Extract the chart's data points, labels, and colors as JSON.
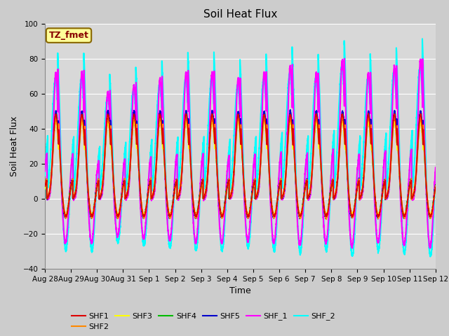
{
  "title": "Soil Heat Flux",
  "xlabel": "Time",
  "ylabel": "Soil Heat Flux",
  "ylim": [
    -40,
    100
  ],
  "n_days": 15,
  "tick_labels": [
    "Aug 28",
    "Aug 29",
    "Aug 30",
    "Aug 31",
    "Sep 1",
    "Sep 2",
    "Sep 3",
    "Sep 4",
    "Sep 5",
    "Sep 6",
    "Sep 7",
    "Sep 8",
    "Sep 9",
    "Sep 10",
    "Sep 11",
    "Sep 12"
  ],
  "series_order": [
    "SHF_2",
    "SHF_1",
    "SHF5",
    "SHF4",
    "SHF3",
    "SHF2",
    "SHF1"
  ],
  "colors": {
    "SHF1": "#dd0000",
    "SHF2": "#ff8800",
    "SHF3": "#ffff00",
    "SHF4": "#00bb00",
    "SHF5": "#0000cc",
    "SHF_1": "#ff00ff",
    "SHF_2": "#00ffff"
  },
  "lw": {
    "SHF1": 1.2,
    "SHF2": 1.2,
    "SHF3": 1.2,
    "SHF4": 1.2,
    "SHF5": 1.2,
    "SHF_1": 1.5,
    "SHF_2": 1.5
  },
  "legend_label": "TZ_fmet",
  "legend_bg": "#ffff99",
  "legend_border": "#886600",
  "fig_bg": "#cccccc",
  "plot_bg": "#d8d8d8",
  "title_fontsize": 11,
  "axis_label_fontsize": 9,
  "tick_fontsize": 7.5
}
